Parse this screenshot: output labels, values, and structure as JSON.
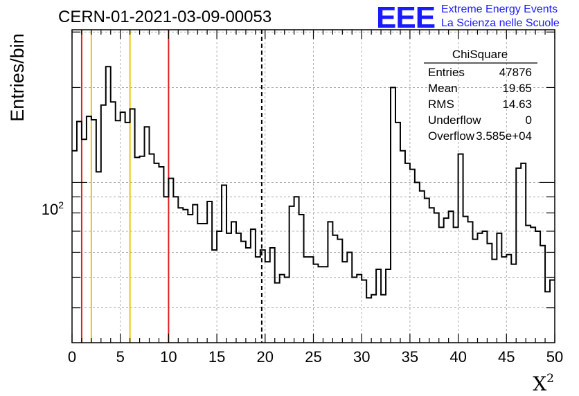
{
  "header": {
    "run_title": "CERN-01-2021-03-09-00053",
    "logo_text": "EEE",
    "logo_line1": "Extreme Energy Events",
    "logo_line2": "La Scienza nelle Scuole"
  },
  "colors": {
    "logo": "#1a1aff",
    "red_line": "#e41a1c",
    "yellow_line": "#f2c500",
    "histogram": "#000000",
    "grid": "#999999"
  },
  "stats": {
    "title": "ChiSquare",
    "rows": [
      {
        "label": "Entries",
        "value": "47876"
      },
      {
        "label": "Mean",
        "value": "19.65"
      },
      {
        "label": "RMS",
        "value": "14.63"
      },
      {
        "label": "Underflow",
        "value": "0"
      },
      {
        "label": "Overflow",
        "value": "3.585e+04"
      }
    ]
  },
  "chart_data": {
    "type": "histogram",
    "title": "CERN-01-2021-03-09-00053",
    "xlabel": "X²",
    "ylabel": "Entries/bin",
    "xlim": [
      0,
      50
    ],
    "ylim": [
      31,
      305
    ],
    "yscale": "log",
    "bin_width": 0.5,
    "grid": true,
    "x_ticks": [
      "0",
      "5",
      "10",
      "15",
      "20",
      "25",
      "30",
      "35",
      "40",
      "45",
      "50"
    ],
    "y_tick_labels": [
      "10²"
    ],
    "y_tick_value": 100,
    "values": [
      126,
      156,
      137,
      162,
      158,
      108,
      176,
      233,
      180,
      157,
      167,
      155,
      171,
      120,
      121,
      150,
      123,
      115,
      112,
      90,
      103,
      90,
      83,
      82,
      79,
      85,
      74,
      74,
      87,
      61,
      70,
      98,
      69,
      75,
      69,
      65,
      62,
      71,
      58,
      61,
      56,
      62,
      48,
      51,
      50,
      84,
      90,
      79,
      58,
      58,
      55,
      54,
      54,
      75,
      68,
      66,
      56,
      60,
      50,
      51,
      49,
      43,
      44,
      53,
      44,
      53,
      200,
      155,
      126,
      115,
      110,
      100,
      94,
      89,
      83,
      80,
      72,
      77,
      81,
      72,
      123,
      78,
      75,
      66,
      69,
      70,
      64,
      57,
      69,
      58,
      59,
      55,
      111,
      115,
      73,
      72,
      70,
      63,
      45,
      49
    ]
  },
  "vertical_lines": [
    {
      "x": 1,
      "color": "red",
      "style": "solid"
    },
    {
      "x": 2,
      "color": "yellow",
      "style": "solid"
    },
    {
      "x": 6,
      "color": "yellow",
      "style": "solid"
    },
    {
      "x": 10,
      "color": "red",
      "style": "solid"
    },
    {
      "x": 19.65,
      "color": "black",
      "style": "dashed"
    }
  ]
}
